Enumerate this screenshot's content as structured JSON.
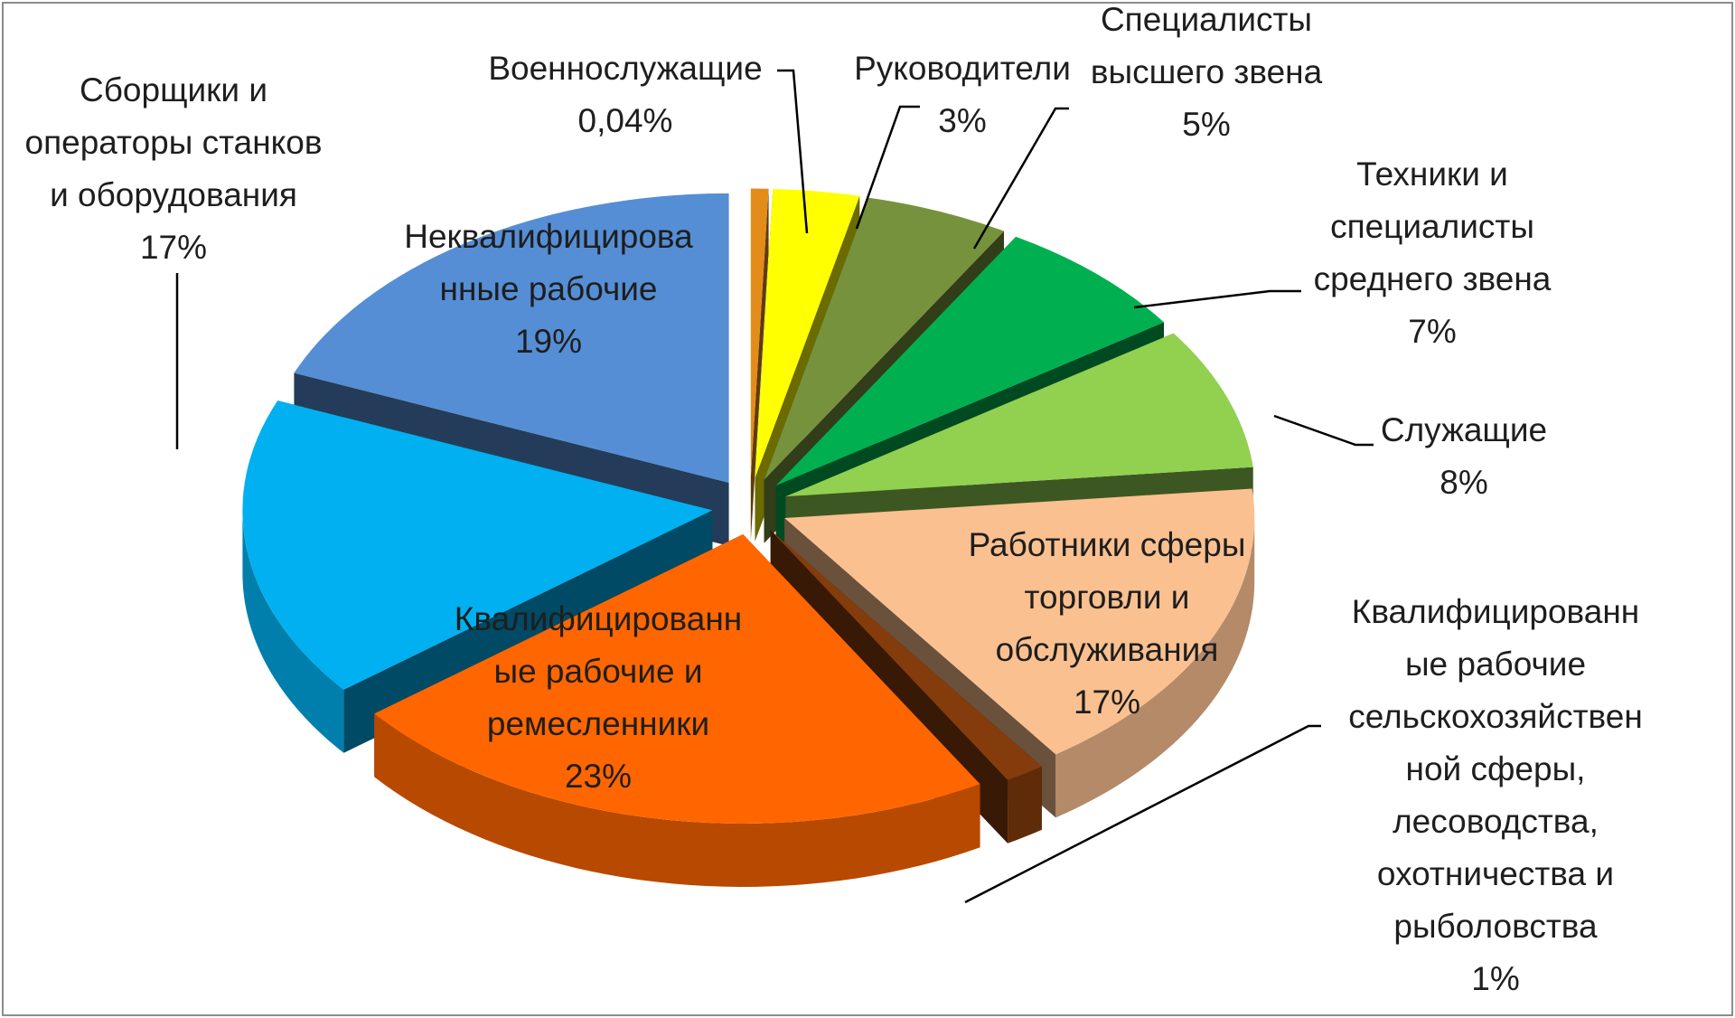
{
  "chart_data": {
    "type": "pie",
    "style": "3d-exploded",
    "title": "",
    "unit": "%",
    "slices": [
      {
        "key": "military",
        "label_lines": [
          "Военнослужащие"
        ],
        "value_text": "0,04%",
        "value": 0.04,
        "color": "#e48c1a"
      },
      {
        "key": "managers",
        "label_lines": [
          "Руководители"
        ],
        "value_text": "3%",
        "value": 3,
        "color": "#ffff00"
      },
      {
        "key": "senior_specialists",
        "label_lines": [
          "Специалисты",
          "высшего звена"
        ],
        "value_text": "5%",
        "value": 5,
        "color": "#76923c"
      },
      {
        "key": "technicians",
        "label_lines": [
          "Техники и",
          "специалисты",
          "среднего звена"
        ],
        "value_text": "7%",
        "value": 7,
        "color": "#00b050"
      },
      {
        "key": "office_workers",
        "label_lines": [
          "Служащие"
        ],
        "value_text": "8%",
        "value": 8,
        "color": "#92d050"
      },
      {
        "key": "service_trade",
        "label_lines": [
          "Работники сферы",
          "торговли и",
          "обслуживания"
        ],
        "value_text": "17%",
        "value": 17,
        "color": "#fac090"
      },
      {
        "key": "agriculture",
        "label_lines": [
          "Квалифицированн",
          "ые рабочие",
          "сельскохозяйствен",
          "ной сферы,",
          "лесоводства,",
          "охотничества и",
          "рыболовства"
        ],
        "value_text": "1%",
        "value": 1,
        "color": "#843c0c"
      },
      {
        "key": "craftsmen",
        "label_lines": [
          "Квалифицированн",
          "ые рабочие и",
          "ремесленники"
        ],
        "value_text": "23%",
        "value": 23,
        "color": "#ff6600"
      },
      {
        "key": "machine_operators",
        "label_lines": [
          "Сборщики и",
          "операторы станков",
          "и оборудования"
        ],
        "value_text": "17%",
        "value": 17,
        "color": "#00b0f0"
      },
      {
        "key": "unskilled",
        "label_lines": [
          "Неквалифицирова",
          "нные рабочие"
        ],
        "value_text": "19%",
        "value": 19,
        "color": "#558ed5"
      }
    ],
    "legend": "none",
    "labels": "outside-with-leader-lines"
  }
}
